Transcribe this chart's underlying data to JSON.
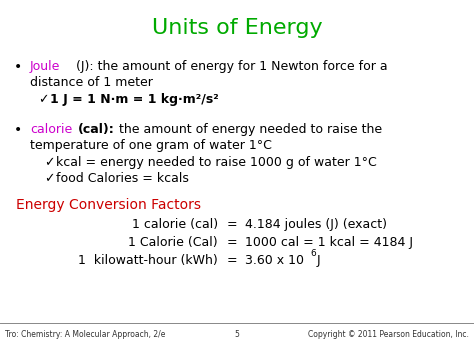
{
  "title": "Units of Energy",
  "title_color": "#00aa00",
  "bg_color": "#ffffff",
  "joule_color": "#cc00cc",
  "calorie_color": "#cc00cc",
  "conversion_header_color": "#cc0000",
  "conversion_header": "Energy Conversion Factors",
  "footer_left": "Tro: Chemistry: A Molecular Approach, 2/e",
  "footer_center": "5",
  "footer_right": "Copyright © 2011 Pearson Education, Inc.",
  "footer_color": "#000000"
}
